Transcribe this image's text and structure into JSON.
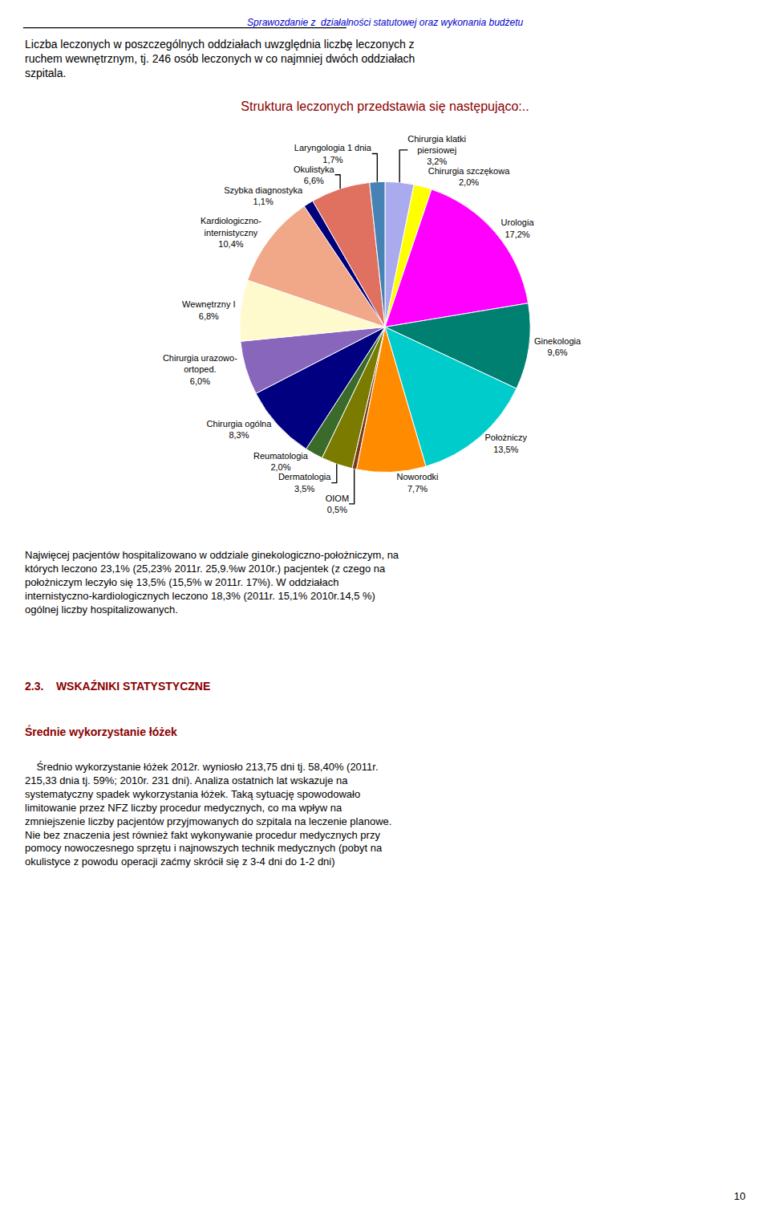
{
  "chart_data": {
    "type": "pie",
    "title": "Struktura leczonych przedstawia się następująco:..",
    "categories": [
      "Chirurgia klatki\npiersiowej",
      "Chirurgia szczękowa",
      "Urologia",
      "Ginekologia",
      "Położniczy",
      "Noworodki",
      "OIOM",
      "Dermatologia",
      "Reumatologia",
      "Chirurgia ogólna",
      "Chirurgia urazowo-\nortoped.",
      "Wewnętrzny I",
      "Kardiologiczno-\ninternistyczny",
      "Szybka diagnostyka",
      "Okulistyka",
      "Laryngologia 1 dnia"
    ],
    "values": [
      3.2,
      2.0,
      17.2,
      9.6,
      13.5,
      7.7,
      0.5,
      3.5,
      2.0,
      8.3,
      6.0,
      6.8,
      10.4,
      1.1,
      6.6,
      1.7
    ],
    "value_labels": [
      "3,2%",
      "2,0%",
      "17,2%",
      "9,6%",
      "13,5%",
      "7,7%",
      "0,5%",
      "3,5%",
      "2,0%",
      "8,3%",
      "6,0%",
      "6,8%",
      "10,4%",
      "1,1%",
      "6,6%",
      "1,7%"
    ],
    "colors": [
      "#AAAAEE",
      "#FFFF00",
      "#FF00FF",
      "#008070",
      "#00CCCC",
      "#FF8C00",
      "#7B3B1B",
      "#7B7B00",
      "#3A6B2A",
      "#000080",
      "#8866BB",
      "#FFFACD",
      "#F0A888",
      "#00007B",
      "#E07060",
      "#4682B4"
    ],
    "data_labels": true,
    "annotations": [
      [
        "Sprawozdanie z  działalności statutowej oraz wykonania budżetu"
      ],
      [
        "Liczba leczonych w poszczególnych oddziałach uwzględnia liczbę leczonych z",
        "ruchem wewnętrznym, tj. 246 osób leczonych w co najmniej dwóch oddziałach",
        "szpitala."
      ],
      [
        "Najwięcej pacjentów hospitalizowano w oddziale ginekologiczno-położniczym, na",
        "których leczono 23,1% (25,23% 2011r. 25,9.%w 2010r.) pacjentek (z czego na",
        "położniczym leczyło się 13,5% (15,5% w 2011r. 17%). W oddziałach",
        "internistyczno-kardiologicznych leczono 18,3% (2011r. 15,1% 2010r.14,5 %)",
        "ogólnej liczby hospitalizowanych."
      ],
      [
        "2.3.    WSKAŹNIKI STATYSTYCZNE"
      ],
      [
        "Średnie wykorzystanie łóżek"
      ],
      [
        "    Średnio wykorzystanie łóżek 2012r. wyniosło 213,75 dni tj. 58,40% (2011r.",
        "215,33 dnia tj. 59%; 2010r. 231 dni). Analiza ostatnich lat wskazuje na",
        "systematyczny spadek wykorzystania łóżek. Taką sytuację spowodowało",
        "limitowanie przez NFZ liczby procedur medycznych, co ma wpływ na",
        "zmniejszenie liczby pacjentów przyjmowanych do szpitala na leczenie planowe.",
        "Nie bez znaczenia jest również fakt wykonywanie procedur medycznych przy",
        "pomocy nowoczesnego sprzętu i najnowszych technik medycznych (pobyt na",
        "okulistyce z powodu operacji zaćmy skrócił się z 3-4 dni do 1-2 dni)"
      ],
      [
        "10"
      ]
    ]
  }
}
